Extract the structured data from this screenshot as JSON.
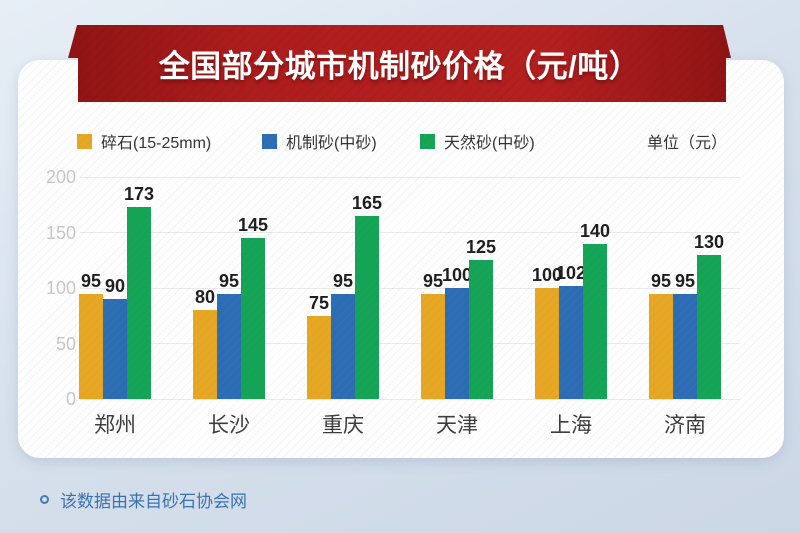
{
  "chart_data": {
    "type": "bar",
    "title": "全国部分城市机制砂价格（元/吨）",
    "unit_label": "单位（元）",
    "categories": [
      "郑州",
      "长沙",
      "重庆",
      "天津",
      "上海",
      "济南"
    ],
    "series": [
      {
        "name": "碎石(15-25mm)",
        "color": "#E7A722",
        "values": [
          95,
          80,
          75,
          95,
          100,
          95
        ]
      },
      {
        "name": "机制砂(中砂)",
        "color": "#2B6CB4",
        "values": [
          90,
          95,
          95,
          100,
          102,
          95
        ]
      },
      {
        "name": "天然砂(中砂)",
        "color": "#13A455",
        "values": [
          173,
          145,
          165,
          125,
          140,
          130
        ]
      }
    ],
    "ylim": [
      0,
      200
    ],
    "yticks": [
      0,
      50,
      100,
      150,
      200
    ],
    "grid": true,
    "legend_position": "top"
  },
  "footer": {
    "note": "该数据由来自砂石协会网"
  },
  "colors": {
    "ribbon_red": "#AE1D1D",
    "background_top": "#E7EEF6",
    "background_bottom": "#CCD7E6",
    "footer_text": "#3A72B0",
    "ytick_gray": "#C7C7C7"
  }
}
